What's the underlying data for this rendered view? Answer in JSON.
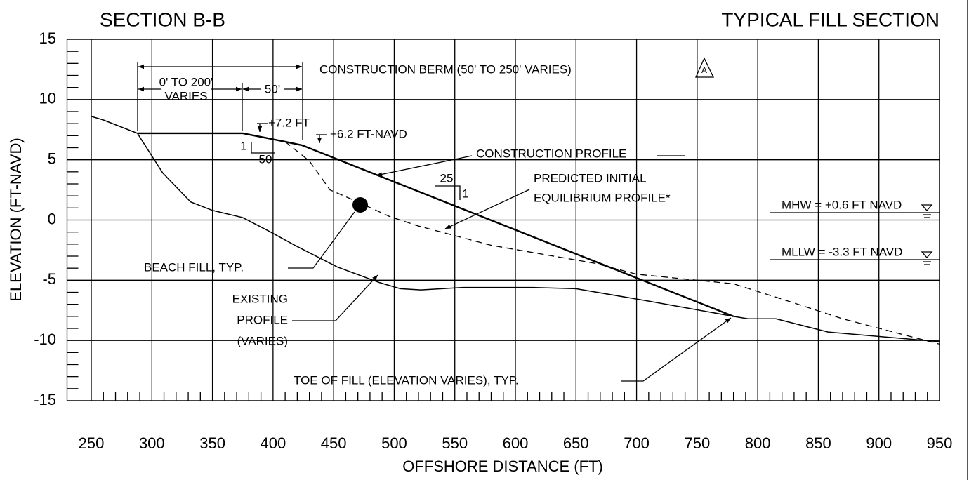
{
  "chart_data": {
    "type": "line",
    "title": "SECTION B-B",
    "subtitle": "TYPICAL FILL SECTION",
    "xlabel": "OFFSHORE DISTANCE (FT)",
    "ylabel": "ELEVATION (FT-NAVD)",
    "xlim": [
      230,
      950
    ],
    "ylim": [
      -15,
      15
    ],
    "xticks": [
      250,
      300,
      350,
      400,
      450,
      500,
      550,
      600,
      650,
      700,
      750,
      800,
      850,
      900,
      950
    ],
    "yticks": [
      -15,
      -10,
      -5,
      0,
      5,
      10,
      15
    ],
    "xminorticks": [
      260,
      270,
      280,
      290,
      310,
      320,
      330,
      340,
      360,
      370,
      380,
      390,
      410,
      420,
      430,
      440,
      460,
      470,
      480,
      490,
      510,
      520,
      530,
      540,
      560,
      570,
      580,
      590,
      610,
      620,
      630,
      640,
      660,
      670,
      680,
      690,
      710,
      720,
      730,
      740,
      760,
      770,
      780,
      790,
      810,
      820,
      830,
      840,
      860,
      870,
      880,
      890,
      910,
      920,
      930,
      940
    ],
    "yminorticks": [
      -14,
      -13,
      -12,
      -11,
      -9,
      -8,
      -7,
      -6,
      -4,
      -3,
      -2,
      -1,
      1,
      2,
      3,
      4,
      6,
      7,
      8,
      9,
      11,
      12,
      13,
      14
    ],
    "grid": true,
    "series": [
      {
        "color": "#000000",
        "style": "solid",
        "x": [
          250,
          260,
          288,
          309,
          332,
          350,
          375,
          398,
          418,
          453,
          488,
          505,
          522,
          557,
          615,
          650,
          708,
          780,
          792,
          815,
          858,
          950
        ],
        "values": [
          8.6,
          8.3,
          7.2,
          3.9,
          1.5,
          0.8,
          0.2,
          -1.0,
          -2.1,
          -3.9,
          -5.2,
          -5.7,
          -5.8,
          -5.6,
          -5.6,
          -5.7,
          -6.7,
          -8.0,
          -8.2,
          -8.2,
          -9.3,
          -10.1
        ]
      },
      {
        "color": "#000000",
        "style": "bold",
        "x": [
          288,
          375,
          410,
          424,
          780
        ],
        "values": [
          7.2,
          7.2,
          6.5,
          6.2,
          -8.0
        ]
      },
      {
        "color": "#000000",
        "style": "dashed",
        "x": [
          410,
          430,
          447,
          470,
          496,
          520,
          580,
          666,
          700,
          780,
          818,
          870,
          950
        ],
        "values": [
          6.5,
          4.9,
          2.5,
          1.5,
          0.3,
          -0.5,
          -2.1,
          -3.6,
          -4.5,
          -5.3,
          -6.5,
          -8.2,
          -10.3
        ]
      }
    ],
    "annotations": [
      "CONSTRUCTION BERM (50' TO 250' VARIES)",
      "0' TO 200'",
      "VARIES",
      "50'",
      "+7.2 FT",
      "+6.2 FT-NAVD",
      "1",
      "50",
      "CONSTRUCTION PROFILE",
      "25",
      "1",
      "PREDICTED INITIAL",
      "EQUILIBRIUM PROFILE*",
      "MHW = +0.6 FT NAVD",
      "MLLW = -3.3 FT NAVD",
      "BEACH FILL, TYP.",
      "EXISTING",
      "PROFILE",
      "(VARIES)",
      "TOE OF FILL (ELEVATION VARIES), TYP.",
      "A"
    ]
  }
}
